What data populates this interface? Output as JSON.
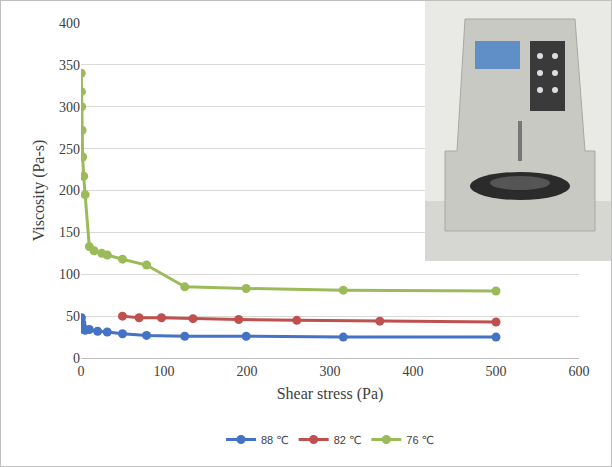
{
  "chart_data": {
    "type": "line",
    "x_label": "Shear stress (Pa)",
    "y_label": "Viscosity (Pa-s)",
    "xlim": [
      0,
      600
    ],
    "xticks": [
      0,
      100,
      200,
      300,
      400,
      500,
      600
    ],
    "ylim": [
      0,
      400
    ],
    "yticks": [
      0,
      50,
      100,
      150,
      200,
      250,
      300,
      350,
      400
    ],
    "grid": true,
    "legend": "bottom",
    "marker": "circle",
    "line_style": "solid",
    "series": [
      {
        "name": "88 ℃",
        "color": "#4472c4",
        "x": [
          0.5,
          1,
          2,
          3,
          5,
          10,
          20,
          31.6,
          50,
          79,
          125,
          199,
          316,
          500
        ],
        "values": [
          48,
          42,
          37,
          34,
          33,
          34,
          32,
          31,
          29,
          27,
          26,
          26,
          25,
          25
        ]
      },
      {
        "name": "82 ℃",
        "color": "#c0504d",
        "x": [
          50,
          70,
          97,
          135,
          190,
          260,
          360,
          500
        ],
        "values": [
          50,
          48,
          48,
          47,
          46,
          45,
          44,
          43
        ]
      },
      {
        "name": "76 ℃",
        "color": "#9bbb59",
        "x": [
          0.3,
          0.5,
          0.8,
          1.3,
          2,
          3.2,
          5,
          10,
          15.8,
          25,
          31.6,
          50,
          79,
          125,
          199,
          316,
          500
        ],
        "values": [
          340,
          318,
          300,
          272,
          240,
          217,
          195,
          133,
          128,
          125,
          123,
          118,
          111,
          85,
          83,
          81,
          80
        ]
      }
    ]
  }
}
